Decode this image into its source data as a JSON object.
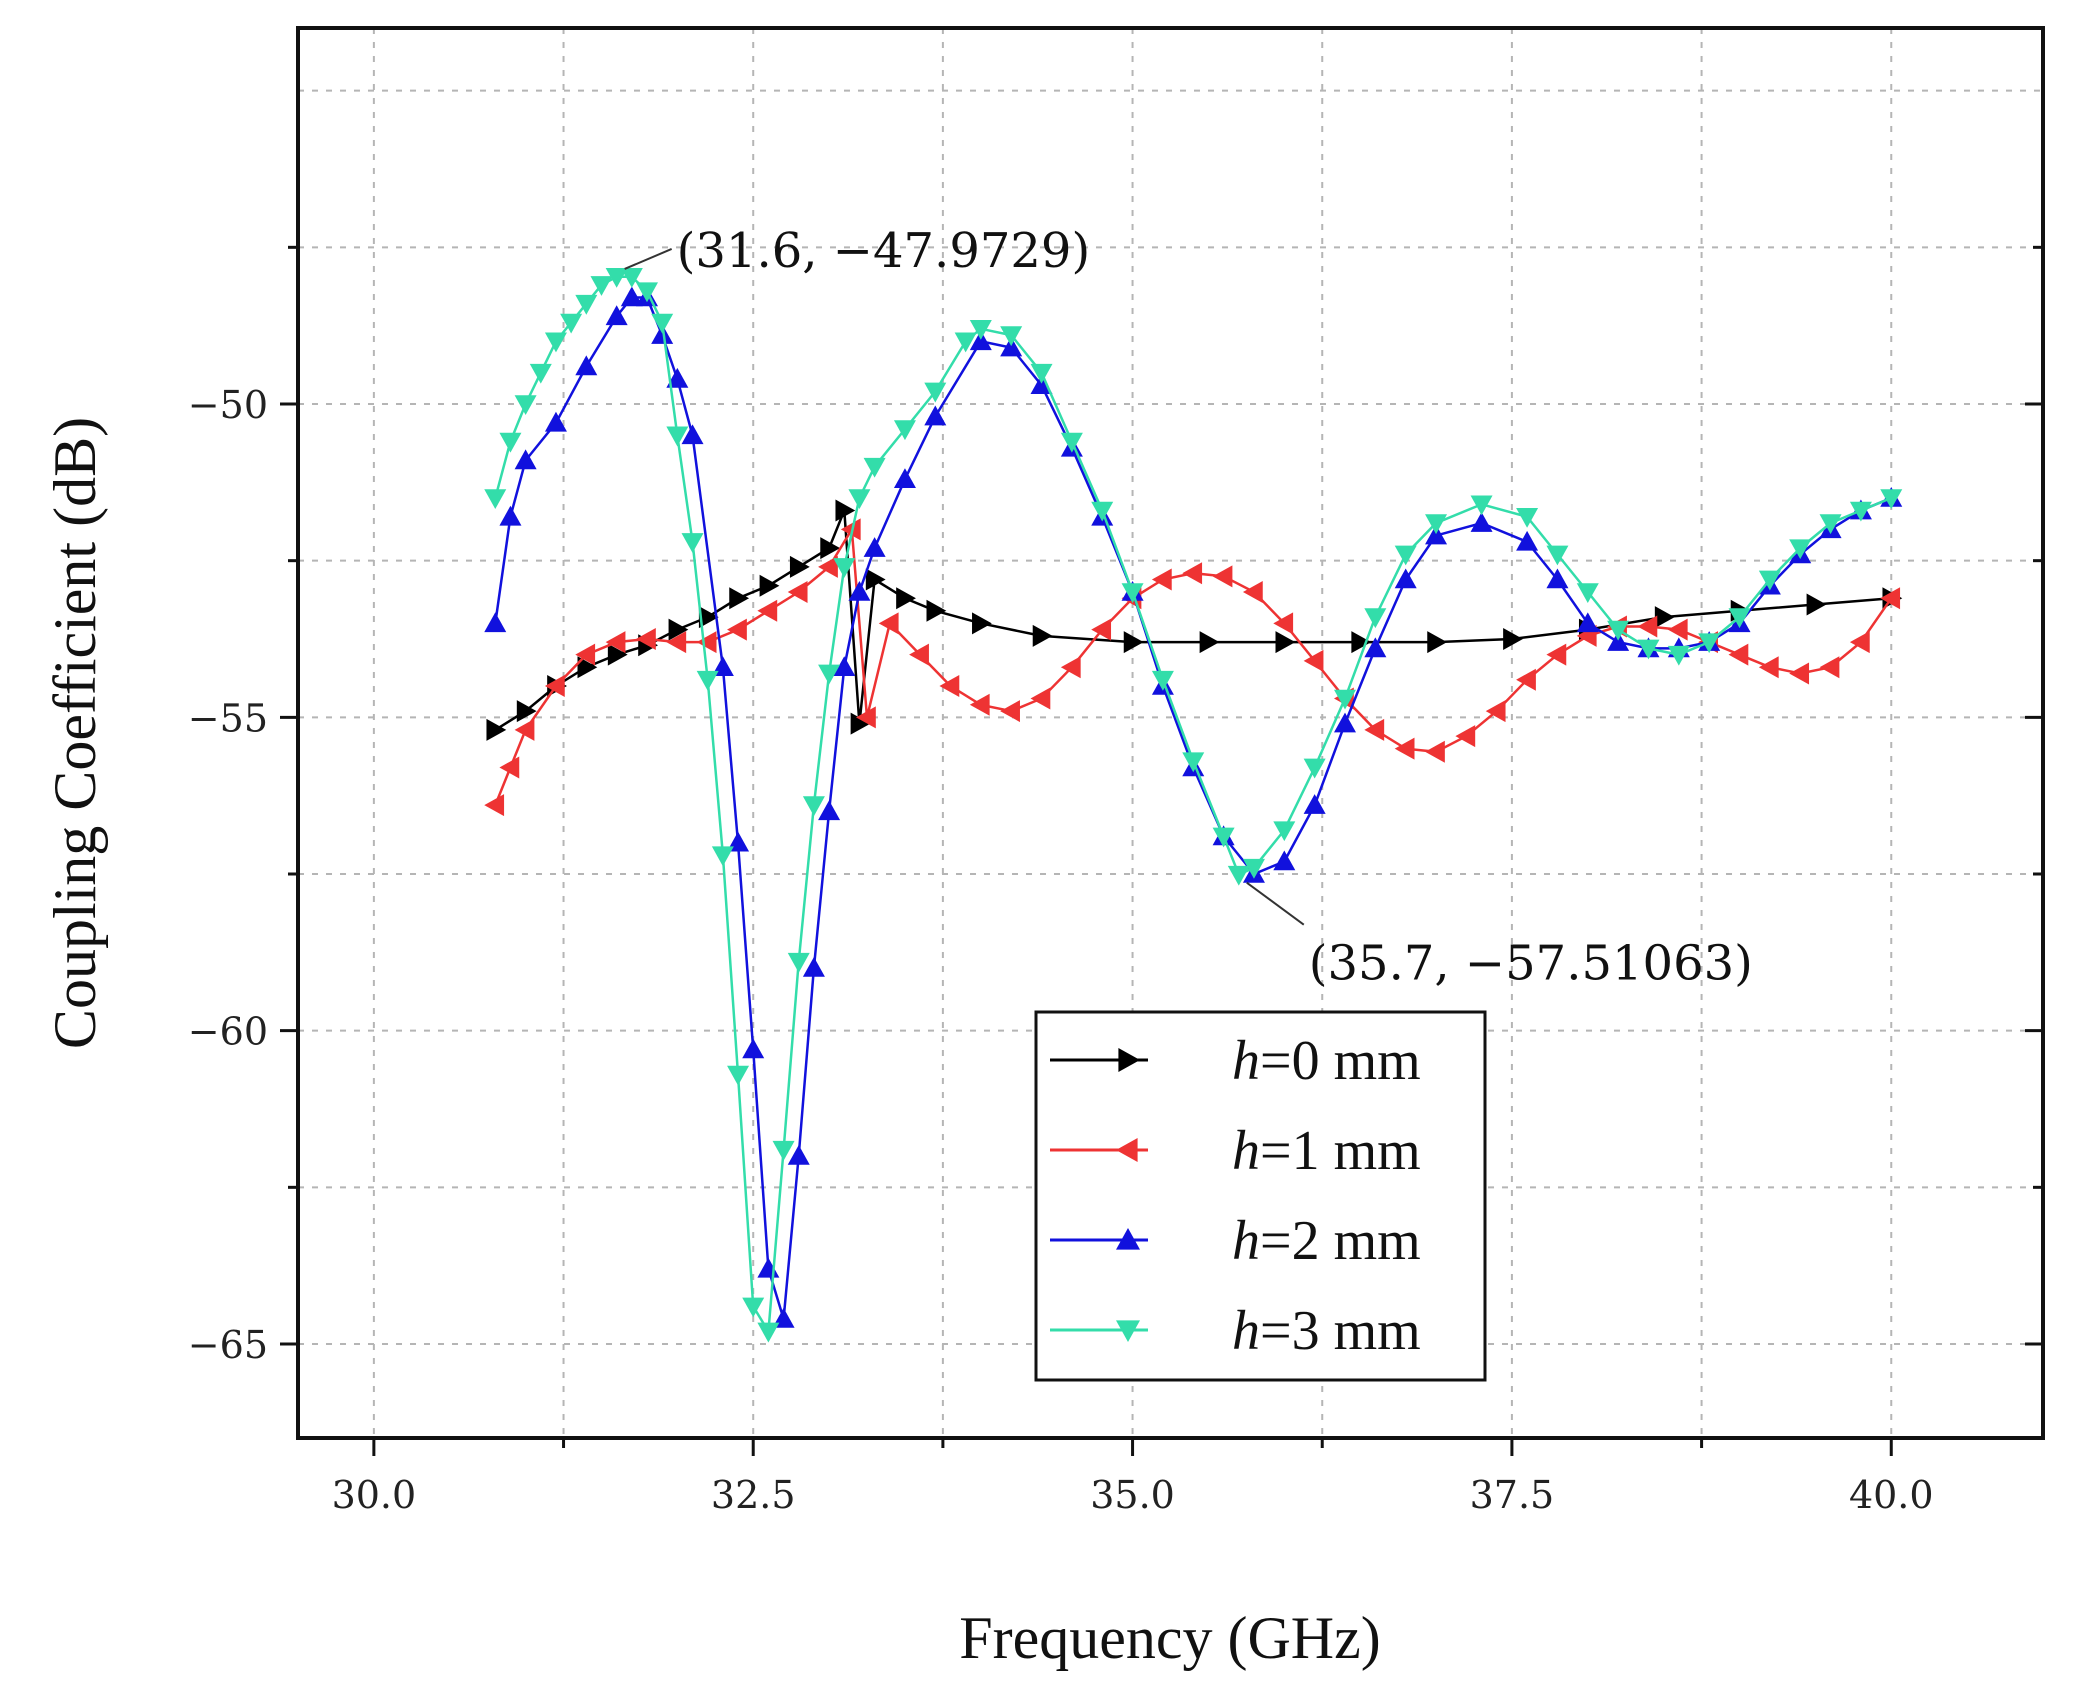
{
  "chart_data": {
    "type": "line",
    "title": "",
    "xlabel": "Frequency (GHz)",
    "ylabel": "Coupling Coefficient (dB)",
    "xlim": [
      29.5,
      41.0
    ],
    "ylim": [
      -66.5,
      -44.0
    ],
    "xticks": [
      30.0,
      32.5,
      35.0,
      37.5,
      40.0
    ],
    "xtick_labels": [
      "30.0",
      "32.5",
      "35.0",
      "37.5",
      "40.0"
    ],
    "yticks": [
      -65,
      -60,
      -55,
      -50
    ],
    "ytick_labels": [
      "-65",
      "-60",
      "-55",
      "-50"
    ],
    "grid": true,
    "legend_position": "bottom-right",
    "series": [
      {
        "name_italic": "h",
        "name_rest": "=0 mm",
        "color": "#000000",
        "marker": "triangle-right",
        "points": [
          [
            30.8,
            -55.2
          ],
          [
            31.0,
            -54.9
          ],
          [
            31.2,
            -54.5
          ],
          [
            31.4,
            -54.2
          ],
          [
            31.6,
            -54.0
          ],
          [
            31.8,
            -53.85
          ],
          [
            32.0,
            -53.6
          ],
          [
            32.2,
            -53.4
          ],
          [
            32.4,
            -53.1
          ],
          [
            32.6,
            -52.9
          ],
          [
            32.8,
            -52.6
          ],
          [
            33.0,
            -52.3
          ],
          [
            33.1,
            -51.7
          ],
          [
            33.2,
            -55.1
          ],
          [
            33.3,
            -52.8
          ],
          [
            33.5,
            -53.1
          ],
          [
            33.7,
            -53.3
          ],
          [
            34.0,
            -53.5
          ],
          [
            34.4,
            -53.7
          ],
          [
            35.0,
            -53.8
          ],
          [
            35.5,
            -53.8
          ],
          [
            36.0,
            -53.8
          ],
          [
            36.5,
            -53.8
          ],
          [
            37.0,
            -53.8
          ],
          [
            37.5,
            -53.75
          ],
          [
            38.0,
            -53.6
          ],
          [
            38.5,
            -53.4
          ],
          [
            39.0,
            -53.3
          ],
          [
            39.5,
            -53.2
          ],
          [
            40.0,
            -53.1
          ]
        ]
      },
      {
        "name_italic": "h",
        "name_rest": "=1 mm",
        "color": "#ee3333",
        "marker": "triangle-left",
        "points": [
          [
            30.8,
            -56.4
          ],
          [
            30.9,
            -55.8
          ],
          [
            31.0,
            -55.2
          ],
          [
            31.2,
            -54.5
          ],
          [
            31.4,
            -54.0
          ],
          [
            31.6,
            -53.8
          ],
          [
            31.8,
            -53.75
          ],
          [
            32.0,
            -53.8
          ],
          [
            32.2,
            -53.8
          ],
          [
            32.4,
            -53.6
          ],
          [
            32.6,
            -53.3
          ],
          [
            32.8,
            -53.0
          ],
          [
            33.0,
            -52.6
          ],
          [
            33.15,
            -52.0
          ],
          [
            33.25,
            -55.0
          ],
          [
            33.4,
            -53.5
          ],
          [
            33.6,
            -54.0
          ],
          [
            33.8,
            -54.5
          ],
          [
            34.0,
            -54.8
          ],
          [
            34.2,
            -54.9
          ],
          [
            34.4,
            -54.7
          ],
          [
            34.6,
            -54.2
          ],
          [
            34.8,
            -53.6
          ],
          [
            35.0,
            -53.1
          ],
          [
            35.2,
            -52.8
          ],
          [
            35.4,
            -52.7
          ],
          [
            35.6,
            -52.75
          ],
          [
            35.8,
            -53.0
          ],
          [
            36.0,
            -53.5
          ],
          [
            36.2,
            -54.1
          ],
          [
            36.4,
            -54.7
          ],
          [
            36.6,
            -55.2
          ],
          [
            36.8,
            -55.5
          ],
          [
            37.0,
            -55.55
          ],
          [
            37.2,
            -55.3
          ],
          [
            37.4,
            -54.9
          ],
          [
            37.6,
            -54.4
          ],
          [
            37.8,
            -54.0
          ],
          [
            38.0,
            -53.7
          ],
          [
            38.2,
            -53.55
          ],
          [
            38.4,
            -53.55
          ],
          [
            38.6,
            -53.6
          ],
          [
            38.8,
            -53.8
          ],
          [
            39.0,
            -54.0
          ],
          [
            39.2,
            -54.2
          ],
          [
            39.4,
            -54.3
          ],
          [
            39.6,
            -54.2
          ],
          [
            39.8,
            -53.8
          ],
          [
            40.0,
            -53.1
          ]
        ]
      },
      {
        "name_italic": "h",
        "name_rest": "=2 mm",
        "color": "#1111dd",
        "marker": "triangle-up",
        "points": [
          [
            30.8,
            -53.5
          ],
          [
            30.9,
            -51.8
          ],
          [
            31.0,
            -50.9
          ],
          [
            31.2,
            -50.3
          ],
          [
            31.4,
            -49.4
          ],
          [
            31.6,
            -48.6
          ],
          [
            31.7,
            -48.3
          ],
          [
            31.8,
            -48.3
          ],
          [
            31.9,
            -48.9
          ],
          [
            32.0,
            -49.6
          ],
          [
            32.1,
            -50.5
          ],
          [
            32.3,
            -54.2
          ],
          [
            32.4,
            -57.0
          ],
          [
            32.5,
            -60.3
          ],
          [
            32.6,
            -63.8
          ],
          [
            32.7,
            -64.6
          ],
          [
            32.8,
            -62.0
          ],
          [
            32.9,
            -59.0
          ],
          [
            33.0,
            -56.5
          ],
          [
            33.1,
            -54.2
          ],
          [
            33.2,
            -53.0
          ],
          [
            33.3,
            -52.3
          ],
          [
            33.5,
            -51.2
          ],
          [
            33.7,
            -50.2
          ],
          [
            34.0,
            -49.0
          ],
          [
            34.2,
            -49.1
          ],
          [
            34.4,
            -49.7
          ],
          [
            34.6,
            -50.7
          ],
          [
            34.8,
            -51.8
          ],
          [
            35.0,
            -53.0
          ],
          [
            35.2,
            -54.5
          ],
          [
            35.4,
            -55.8
          ],
          [
            35.6,
            -56.9
          ],
          [
            35.8,
            -57.5
          ],
          [
            36.0,
            -57.3
          ],
          [
            36.2,
            -56.4
          ],
          [
            36.4,
            -55.1
          ],
          [
            36.6,
            -53.9
          ],
          [
            36.8,
            -52.8
          ],
          [
            37.0,
            -52.1
          ],
          [
            37.3,
            -51.9
          ],
          [
            37.6,
            -52.2
          ],
          [
            37.8,
            -52.8
          ],
          [
            38.0,
            -53.5
          ],
          [
            38.2,
            -53.8
          ],
          [
            38.4,
            -53.9
          ],
          [
            38.6,
            -53.9
          ],
          [
            38.8,
            -53.8
          ],
          [
            39.0,
            -53.5
          ],
          [
            39.2,
            -52.9
          ],
          [
            39.4,
            -52.4
          ],
          [
            39.6,
            -52.0
          ],
          [
            39.8,
            -51.7
          ],
          [
            40.0,
            -51.5
          ]
        ]
      },
      {
        "name_italic": "h",
        "name_rest": "=3 mm",
        "color": "#33ddaa",
        "marker": "triangle-down",
        "points": [
          [
            30.8,
            -51.5
          ],
          [
            30.9,
            -50.6
          ],
          [
            31.0,
            -50.0
          ],
          [
            31.1,
            -49.5
          ],
          [
            31.2,
            -49.0
          ],
          [
            31.3,
            -48.7
          ],
          [
            31.4,
            -48.4
          ],
          [
            31.5,
            -48.1
          ],
          [
            31.6,
            -47.97
          ],
          [
            31.7,
            -47.97
          ],
          [
            31.8,
            -48.2
          ],
          [
            31.9,
            -48.7
          ],
          [
            32.0,
            -50.5
          ],
          [
            32.1,
            -52.2
          ],
          [
            32.2,
            -54.4
          ],
          [
            32.3,
            -57.2
          ],
          [
            32.4,
            -60.7
          ],
          [
            32.5,
            -64.4
          ],
          [
            32.6,
            -64.8
          ],
          [
            32.7,
            -61.9
          ],
          [
            32.8,
            -58.9
          ],
          [
            32.9,
            -56.4
          ],
          [
            33.0,
            -54.3
          ],
          [
            33.1,
            -52.6
          ],
          [
            33.2,
            -51.5
          ],
          [
            33.3,
            -51.0
          ],
          [
            33.5,
            -50.4
          ],
          [
            33.7,
            -49.8
          ],
          [
            33.9,
            -49.0
          ],
          [
            34.0,
            -48.8
          ],
          [
            34.2,
            -48.9
          ],
          [
            34.4,
            -49.5
          ],
          [
            34.6,
            -50.6
          ],
          [
            34.8,
            -51.7
          ],
          [
            35.0,
            -53.0
          ],
          [
            35.2,
            -54.4
          ],
          [
            35.4,
            -55.7
          ],
          [
            35.6,
            -56.9
          ],
          [
            35.7,
            -57.51
          ],
          [
            35.8,
            -57.4
          ],
          [
            36.0,
            -56.8
          ],
          [
            36.2,
            -55.8
          ],
          [
            36.4,
            -54.7
          ],
          [
            36.6,
            -53.4
          ],
          [
            36.8,
            -52.4
          ],
          [
            37.0,
            -51.9
          ],
          [
            37.3,
            -51.6
          ],
          [
            37.6,
            -51.8
          ],
          [
            37.8,
            -52.4
          ],
          [
            38.0,
            -53.0
          ],
          [
            38.2,
            -53.6
          ],
          [
            38.4,
            -53.9
          ],
          [
            38.6,
            -54.0
          ],
          [
            38.8,
            -53.8
          ],
          [
            39.0,
            -53.4
          ],
          [
            39.2,
            -52.8
          ],
          [
            39.4,
            -52.3
          ],
          [
            39.6,
            -51.9
          ],
          [
            39.8,
            -51.7
          ],
          [
            40.0,
            -51.5
          ]
        ]
      }
    ],
    "annotations": [
      {
        "text": "(31.6, −47.9729)",
        "x": 31.6,
        "y": -47.9729,
        "label_side": "upper-right"
      },
      {
        "text": "(35.7, −57.51063)",
        "x": 35.7,
        "y": -57.51063,
        "label_side": "lower-right"
      }
    ]
  }
}
